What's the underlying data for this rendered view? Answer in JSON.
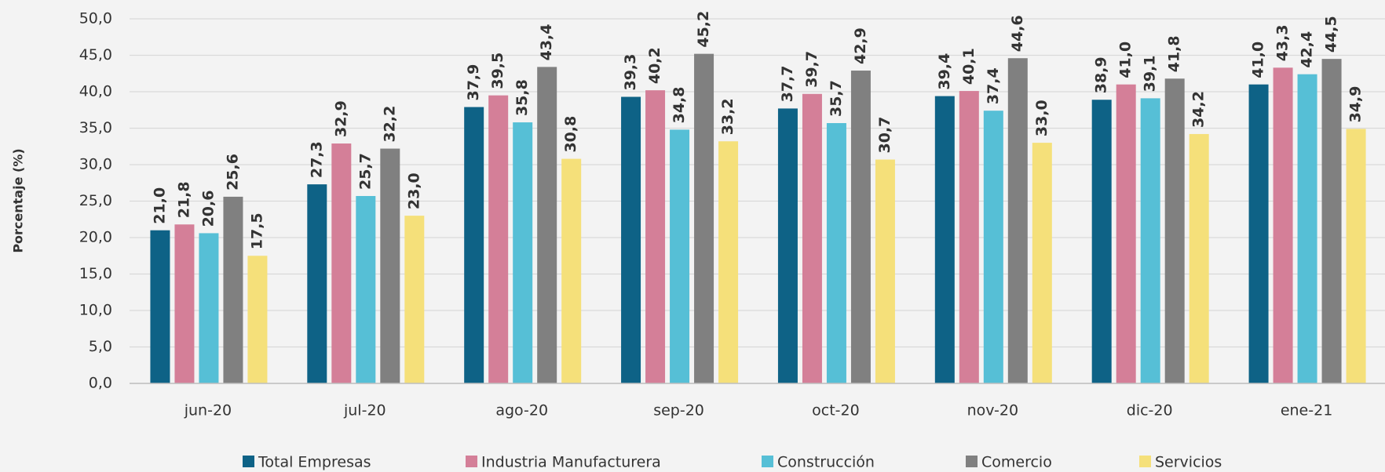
{
  "chart_data": {
    "type": "bar",
    "y_label": "Porcentaje (%)",
    "categories": [
      "jun-20",
      "jul-20",
      "ago-20",
      "sep-20",
      "oct-20",
      "nov-20",
      "dic-20",
      "ene-21"
    ],
    "series": [
      {
        "name": "Total Empresas",
        "color": "#0e6286",
        "values": [
          21.0,
          27.3,
          37.9,
          39.3,
          37.7,
          39.4,
          38.9,
          41.0
        ],
        "value_labels": [
          "21,0",
          "27,3",
          "37,9",
          "39,3",
          "37,7",
          "39,4",
          "38,9",
          "41,0"
        ]
      },
      {
        "name": "Industria Manufacturera",
        "color": "#d47f98",
        "values": [
          21.8,
          32.9,
          39.5,
          40.2,
          39.7,
          40.1,
          41.0,
          43.3
        ],
        "value_labels": [
          "21,8",
          "32,9",
          "39,5",
          "40,2",
          "39,7",
          "40,1",
          "41,0",
          "43,3"
        ]
      },
      {
        "name": "Construcción",
        "color": "#56bfd6",
        "values": [
          20.6,
          25.7,
          35.8,
          34.8,
          35.7,
          37.4,
          39.1,
          42.4
        ],
        "value_labels": [
          "20,6",
          "25,7",
          "35,8",
          "34,8",
          "35,7",
          "37,4",
          "39,1",
          "42,4"
        ]
      },
      {
        "name": "Comercio",
        "color": "#808080",
        "values": [
          25.6,
          32.2,
          43.4,
          45.2,
          42.9,
          44.6,
          41.8,
          44.5
        ],
        "value_labels": [
          "25,6",
          "32,2",
          "43,4",
          "45,2",
          "42,9",
          "44,6",
          "41,8",
          "44,5"
        ]
      },
      {
        "name": "Servicios",
        "color": "#f5e07a",
        "values": [
          17.5,
          23.0,
          30.8,
          33.2,
          30.7,
          33.0,
          34.2,
          34.9
        ],
        "value_labels": [
          "17,5",
          "23,0",
          "30,8",
          "33,2",
          "30,7",
          "33,0",
          "34,2",
          "34,9"
        ]
      }
    ],
    "ylim": [
      0,
      50
    ],
    "yticks": [
      {
        "value": 0,
        "label": "0,0"
      },
      {
        "value": 5,
        "label": "5,0"
      },
      {
        "value": 10,
        "label": "10,0"
      },
      {
        "value": 15,
        "label": "15,0"
      },
      {
        "value": 20,
        "label": "20,0"
      },
      {
        "value": 25,
        "label": "25,0"
      },
      {
        "value": 30,
        "label": "30,0"
      },
      {
        "value": 35,
        "label": "35,0"
      },
      {
        "value": 40,
        "label": "40,0"
      },
      {
        "value": 45,
        "label": "45,0"
      },
      {
        "value": 50,
        "label": "50,0"
      }
    ],
    "grid": true,
    "legend": "bottom"
  }
}
